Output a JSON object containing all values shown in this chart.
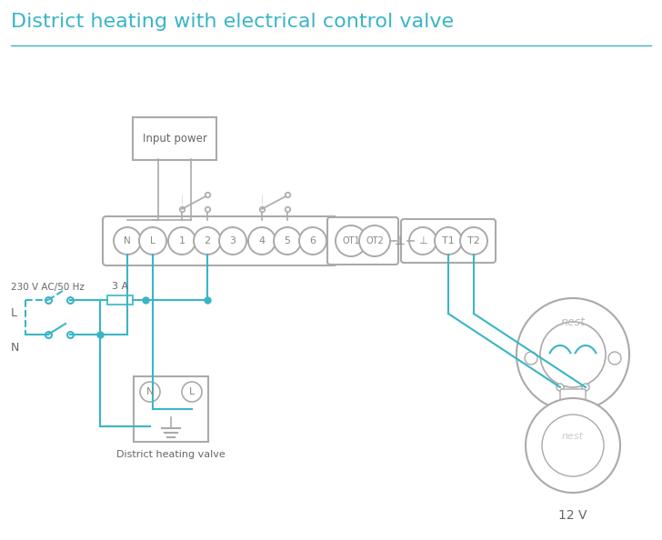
{
  "title": "District heating with electrical control valve",
  "title_color": "#3ab5c6",
  "title_fontsize": 16,
  "bg_color": "#ffffff",
  "wire_color": "#3ab5c6",
  "box_color": "#aaaaaa",
  "text_color": "#888888",
  "dark_text": "#666666",
  "terminal_labels": [
    "N",
    "L",
    "1",
    "2",
    "3",
    "4",
    "5",
    "6"
  ],
  "ot_labels": [
    "OT1",
    "OT2"
  ],
  "right_labels": [
    "⊥",
    "T1",
    "T2"
  ],
  "input_power_label": "Input power",
  "district_valve_label": "District heating valve",
  "voltage_label": "230 V AC/50 Hz",
  "fuse_label": "3 A",
  "nest_label_12v": "12 V",
  "line_label": "L",
  "neutral_label": "N",
  "nest_label": "nest"
}
